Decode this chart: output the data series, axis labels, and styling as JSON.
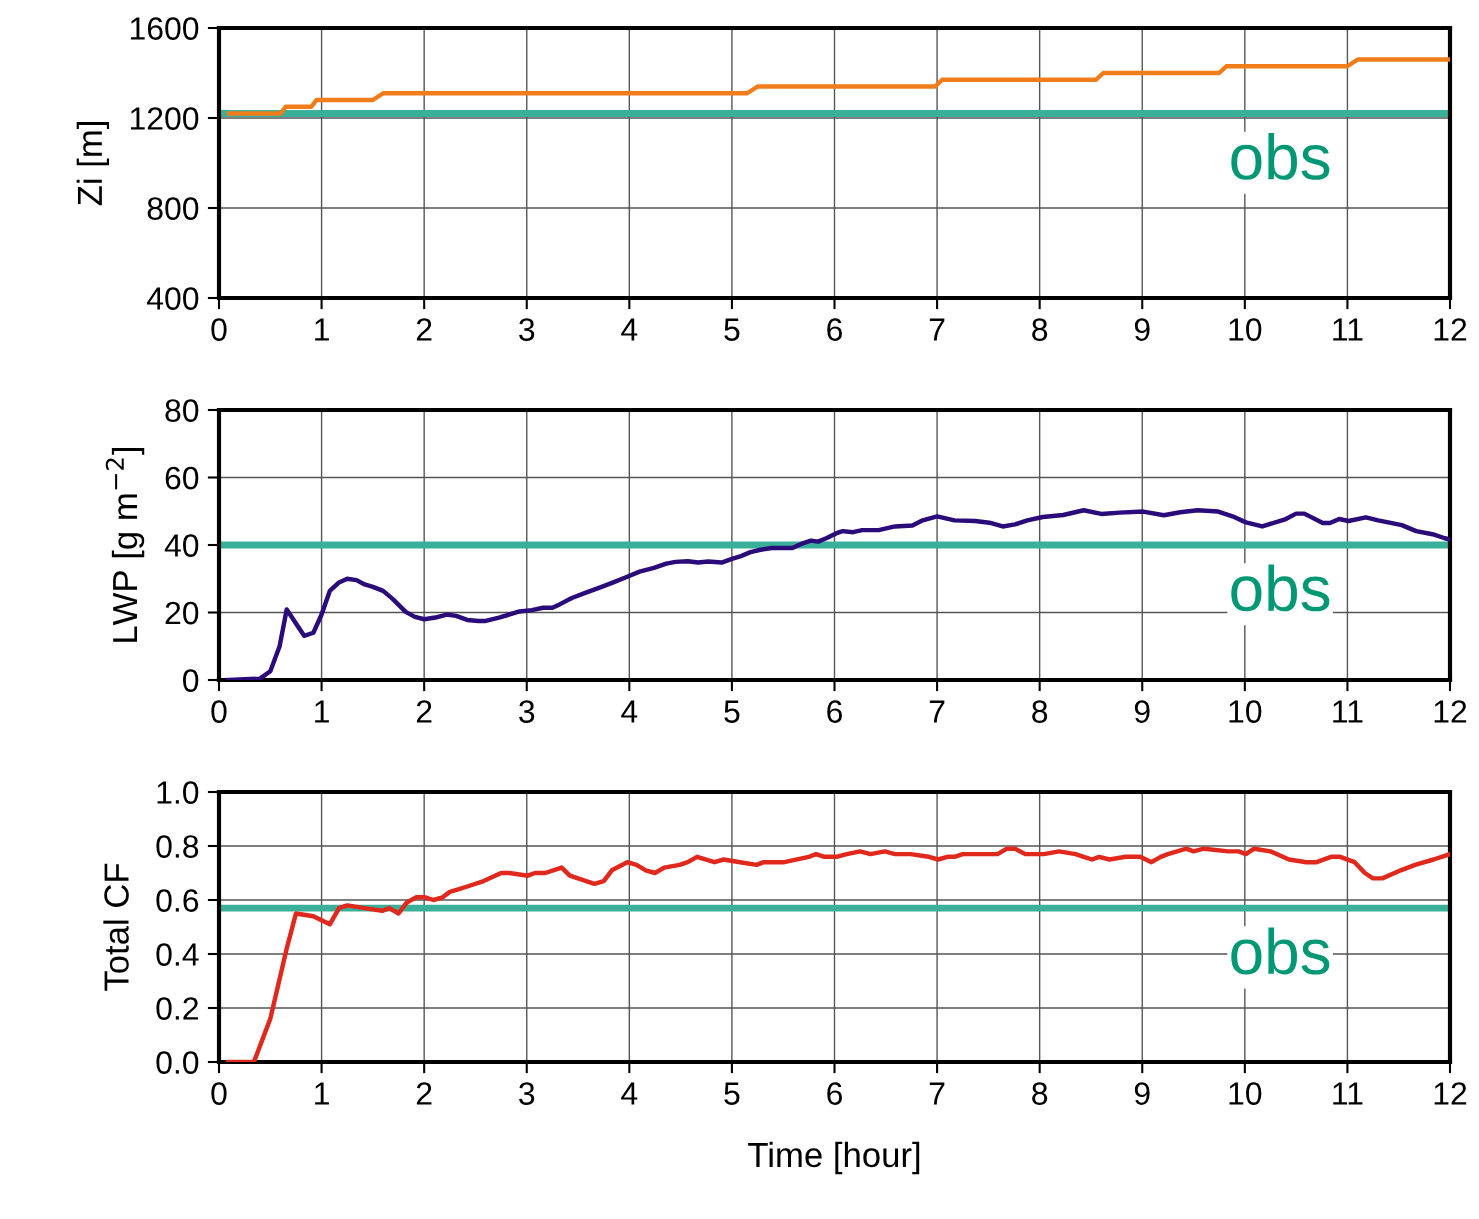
{
  "chart_data": [
    {
      "type": "line",
      "ylabel": "Zi [m]",
      "xlim": [
        0,
        12
      ],
      "xticks": [
        0,
        1,
        2,
        3,
        4,
        5,
        6,
        7,
        8,
        9,
        10,
        11,
        12
      ],
      "ylim": [
        400,
        1600
      ],
      "yticks": [
        400,
        800,
        1200,
        1600
      ],
      "grid": true,
      "series": [
        {
          "color": "#f07d1a",
          "x": [
            0.1,
            0.6,
            0.65,
            0.9,
            0.95,
            1.5,
            1.6,
            5.15,
            5.25,
            6.98,
            7.05,
            8.55,
            8.62,
            9.75,
            9.82,
            11.0,
            11.1,
            12.0
          ],
          "values": [
            1220,
            1220,
            1250,
            1250,
            1280,
            1280,
            1310,
            1310,
            1340,
            1340,
            1370,
            1370,
            1400,
            1400,
            1430,
            1430,
            1460,
            1460
          ]
        }
      ],
      "ref_lines": [
        {
          "axis": "y",
          "value": 1220,
          "label": "obs",
          "color": "#3aaf9a"
        }
      ]
    },
    {
      "type": "line",
      "ylabel": "LWP [g m$^{−2}$]",
      "xlim": [
        0,
        12
      ],
      "xticks": [
        0,
        1,
        2,
        3,
        4,
        5,
        6,
        7,
        8,
        9,
        10,
        11,
        12
      ],
      "ylim": [
        0,
        80
      ],
      "yticks": [
        0,
        20,
        40,
        60,
        80
      ],
      "grid": true,
      "series": [
        {
          "color": "#2b0a7a",
          "x": [
            0.09,
            0.4,
            0.5,
            0.59,
            0.66,
            0.83,
            0.92,
            1.0,
            1.08,
            1.17,
            1.25,
            1.34,
            1.42,
            1.5,
            1.6,
            1.69,
            1.82,
            1.91,
            2.0,
            2.11,
            2.22,
            2.31,
            2.42,
            2.53,
            2.6,
            2.73,
            2.93,
            3.05,
            3.16,
            3.25,
            3.32,
            3.44,
            3.57,
            3.73,
            3.85,
            3.98,
            4.1,
            4.24,
            4.36,
            4.45,
            4.57,
            4.67,
            4.77,
            4.9,
            5.0,
            5.08,
            5.18,
            5.28,
            5.39,
            5.59,
            5.69,
            5.77,
            5.84,
            5.92,
            6.02,
            6.08,
            6.18,
            6.27,
            6.43,
            6.59,
            6.76,
            6.86,
            7.0,
            7.17,
            7.37,
            7.51,
            7.64,
            7.76,
            7.88,
            8.03,
            8.23,
            8.43,
            8.6,
            8.78,
            9.01,
            9.21,
            9.37,
            9.54,
            9.74,
            9.88,
            10.01,
            10.17,
            10.4,
            10.5,
            10.58,
            10.76,
            10.83,
            10.92,
            11.01,
            11.18,
            11.3,
            11.53,
            11.67,
            11.83,
            11.95,
            12.0
          ],
          "values": [
            0,
            0.4,
            2.6,
            9.9,
            20.9,
            13.1,
            14,
            19.4,
            26.4,
            28.9,
            30,
            29.6,
            28.3,
            27.6,
            26.4,
            24.1,
            20.2,
            18.7,
            18,
            18.5,
            19.4,
            19,
            17.8,
            17.5,
            17.5,
            18.5,
            20.3,
            20.7,
            21.4,
            21.4,
            22.4,
            24.3,
            25.8,
            27.6,
            29,
            30.6,
            32.1,
            33.2,
            34.5,
            35,
            35.2,
            34.8,
            35.1,
            34.8,
            35.9,
            36.6,
            37.9,
            38.6,
            39.1,
            39.1,
            40.5,
            41.3,
            41,
            42,
            43.5,
            44.1,
            43.8,
            44.4,
            44.4,
            45.5,
            45.8,
            47.3,
            48.5,
            47.3,
            47.1,
            46.6,
            45.5,
            46.1,
            47.3,
            48.3,
            48.9,
            50.3,
            49.2,
            49.6,
            49.9,
            48.8,
            49.7,
            50.3,
            49.9,
            48.5,
            46.7,
            45.5,
            47.7,
            49.3,
            49.3,
            46.5,
            46.5,
            47.7,
            47.1,
            48.2,
            47.3,
            45.9,
            44.1,
            43.2,
            42,
            41.6
          ]
        }
      ],
      "ref_lines": [
        {
          "axis": "y",
          "value": 40,
          "label": "obs",
          "color": "#3aaf9a"
        }
      ]
    },
    {
      "type": "line",
      "ylabel": "Total CF",
      "xlabel": "Time [hour]",
      "xlim": [
        0,
        12
      ],
      "xticks": [
        0,
        1,
        2,
        3,
        4,
        5,
        6,
        7,
        8,
        9,
        10,
        11,
        12
      ],
      "ylim": [
        0,
        1
      ],
      "yticks": [
        {
          "value": 0,
          "label": "0.0"
        },
        0.2,
        0.4,
        0.6,
        0.8,
        {
          "value": 1,
          "label": "1.0"
        }
      ],
      "grid": true,
      "series": [
        {
          "color": "#e0281c",
          "x": [
            0.09,
            0.34,
            0.41,
            0.5,
            0.58,
            0.66,
            0.75,
            0.92,
            1.08,
            1.17,
            1.25,
            1.42,
            1.59,
            1.66,
            1.75,
            1.83,
            1.92,
            2.01,
            2.09,
            2.18,
            2.25,
            2.34,
            2.42,
            2.58,
            2.75,
            2.83,
            3.01,
            3.08,
            3.18,
            3.34,
            3.42,
            3.66,
            3.75,
            3.83,
            3.98,
            4.07,
            4.16,
            4.25,
            4.34,
            4.49,
            4.57,
            4.66,
            4.83,
            4.92,
            5.08,
            5.24,
            5.31,
            5.41,
            5.51,
            5.75,
            5.82,
            5.9,
            6.02,
            6.12,
            6.25,
            6.35,
            6.49,
            6.59,
            6.74,
            6.92,
            7.01,
            7.1,
            7.17,
            7.25,
            7.33,
            7.43,
            7.59,
            7.68,
            7.76,
            7.86,
            7.96,
            8.04,
            8.19,
            8.35,
            8.43,
            8.51,
            8.58,
            8.68,
            8.84,
            8.98,
            9.09,
            9.18,
            9.25,
            9.43,
            9.5,
            9.6,
            9.84,
            9.94,
            10.01,
            10.09,
            10.25,
            10.43,
            10.6,
            10.7,
            10.84,
            10.93,
            11.07,
            11.17,
            11.25,
            11.34,
            11.52,
            11.66,
            11.84,
            12.0
          ],
          "values": [
            0,
            0,
            0.07,
            0.16,
            0.29,
            0.42,
            0.55,
            0.54,
            0.51,
            0.57,
            0.58,
            0.57,
            0.56,
            0.57,
            0.55,
            0.59,
            0.61,
            0.61,
            0.6,
            0.61,
            0.63,
            0.64,
            0.65,
            0.67,
            0.7,
            0.7,
            0.69,
            0.7,
            0.7,
            0.72,
            0.69,
            0.66,
            0.67,
            0.71,
            0.74,
            0.73,
            0.71,
            0.7,
            0.72,
            0.73,
            0.74,
            0.76,
            0.74,
            0.75,
            0.74,
            0.73,
            0.74,
            0.74,
            0.74,
            0.76,
            0.77,
            0.76,
            0.76,
            0.77,
            0.78,
            0.77,
            0.78,
            0.77,
            0.77,
            0.76,
            0.75,
            0.76,
            0.76,
            0.77,
            0.77,
            0.77,
            0.77,
            0.79,
            0.79,
            0.77,
            0.77,
            0.77,
            0.78,
            0.77,
            0.76,
            0.75,
            0.76,
            0.75,
            0.76,
            0.76,
            0.74,
            0.76,
            0.77,
            0.79,
            0.78,
            0.79,
            0.78,
            0.78,
            0.77,
            0.79,
            0.78,
            0.75,
            0.74,
            0.74,
            0.76,
            0.76,
            0.74,
            0.7,
            0.68,
            0.68,
            0.71,
            0.73,
            0.75,
            0.77
          ]
        }
      ],
      "ref_lines": [
        {
          "axis": "y",
          "value": 0.57,
          "label": "obs",
          "color": "#3aaf9a"
        }
      ]
    }
  ]
}
